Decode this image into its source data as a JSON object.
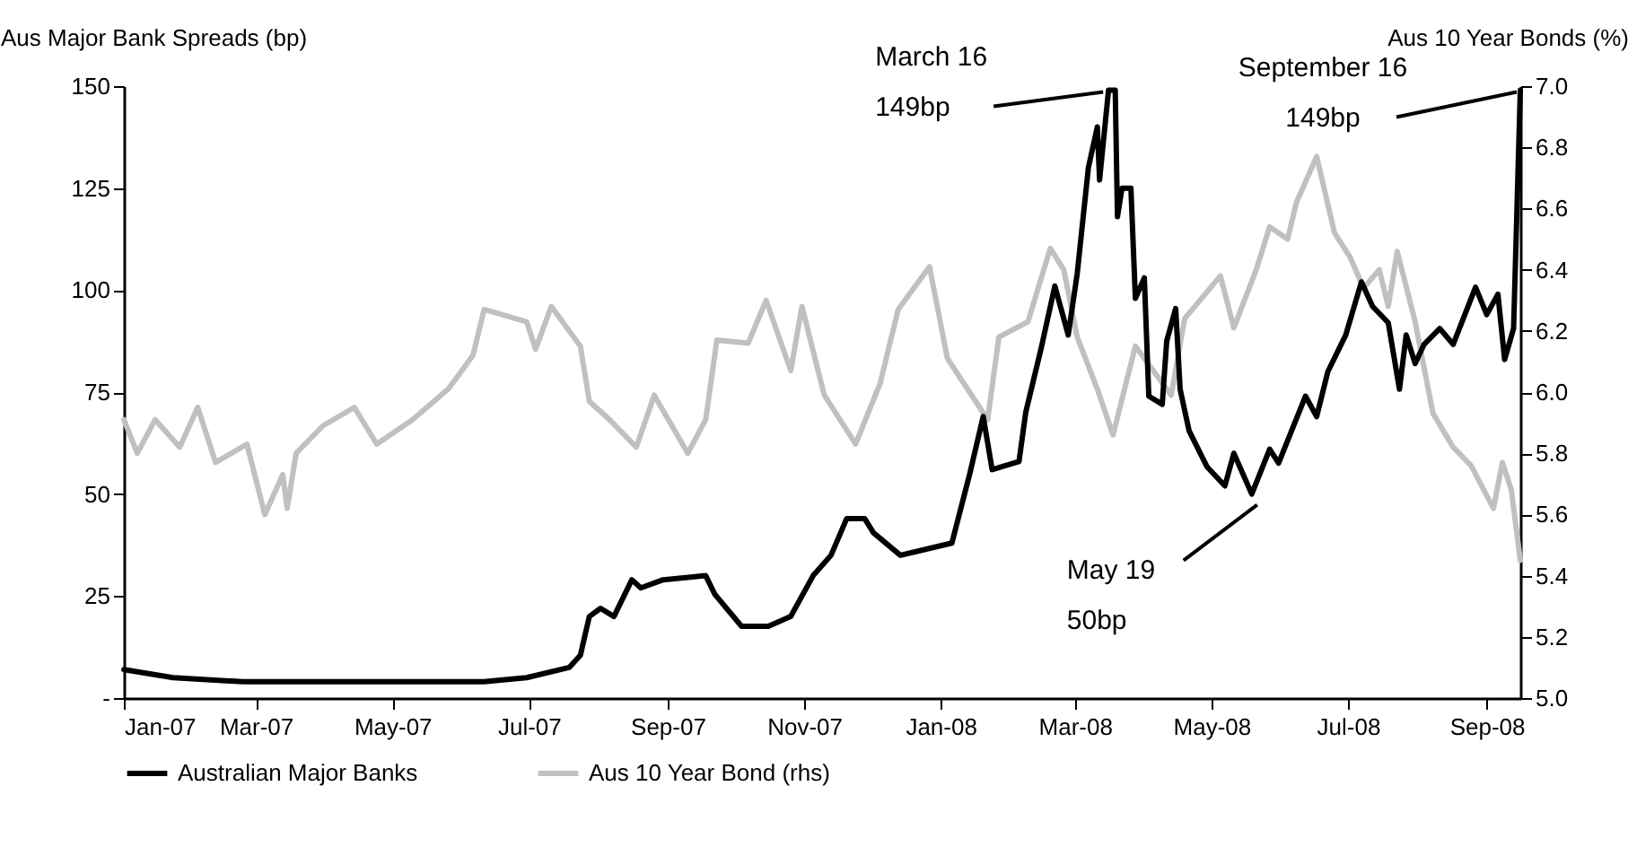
{
  "chart_data": {
    "type": "line",
    "ylabel": "Aus Major Bank Spreads (bp)",
    "y2label": "Aus 10 Year Bonds (%)",
    "xlim": [
      "2007-01-01",
      "2008-09-16"
    ],
    "xticks": [
      {
        "value": "2007-01-01",
        "label": "Jan-07"
      },
      {
        "value": "2007-03-01",
        "label": "Mar-07"
      },
      {
        "value": "2007-05-01",
        "label": "May-07"
      },
      {
        "value": "2007-07-01",
        "label": "Jul-07"
      },
      {
        "value": "2007-09-01",
        "label": "Sep-07"
      },
      {
        "value": "2007-11-01",
        "label": "Nov-07"
      },
      {
        "value": "2008-01-01",
        "label": "Jan-08"
      },
      {
        "value": "2008-03-01",
        "label": "Mar-08"
      },
      {
        "value": "2008-05-01",
        "label": "May-08"
      },
      {
        "value": "2008-07-01",
        "label": "Jul-08"
      },
      {
        "value": "2008-09-01",
        "label": "Sep-08"
      }
    ],
    "ylim": [
      0,
      150
    ],
    "yticks": [
      {
        "value": 0,
        "label": "-"
      },
      25,
      50,
      75,
      100,
      125,
      150
    ],
    "y2lim": [
      5.0,
      7.0
    ],
    "y2ticks": [
      {
        "value": 5.0,
        "label": "5.0"
      },
      {
        "value": 5.2,
        "label": "5.2"
      },
      {
        "value": 5.4,
        "label": "5.4"
      },
      {
        "value": 5.6,
        "label": "5.6"
      },
      {
        "value": 5.8,
        "label": "5.8"
      },
      {
        "value": 6.0,
        "label": "6.0"
      },
      {
        "value": 6.2,
        "label": "6.2"
      },
      {
        "value": 6.4,
        "label": "6.4"
      },
      {
        "value": 6.6,
        "label": "6.6"
      },
      {
        "value": 6.8,
        "label": "6.8"
      },
      {
        "value": 7.0,
        "label": "7.0"
      }
    ],
    "grid": false,
    "legend": "bottom",
    "marker": "none",
    "line_style": "solid",
    "series": [
      {
        "name": "Australian Major Banks",
        "color": "#000000",
        "x": [
          "2007-01-01",
          "2007-01-23",
          "2007-02-23",
          "2007-06-11",
          "2007-06-30",
          "2007-07-19",
          "2007-07-24",
          "2007-07-28",
          "2007-08-02",
          "2007-08-08",
          "2007-08-16",
          "2007-08-20",
          "2007-08-30",
          "2007-09-18",
          "2007-09-22",
          "2007-10-04",
          "2007-10-16",
          "2007-10-26",
          "2007-11-05",
          "2007-11-13",
          "2007-11-20",
          "2007-11-28",
          "2007-12-02",
          "2007-12-14",
          "2008-01-06",
          "2008-01-14",
          "2008-01-20",
          "2008-01-24",
          "2008-02-05",
          "2008-02-08",
          "2008-02-15",
          "2008-02-21",
          "2008-02-27",
          "2008-03-02",
          "2008-03-07",
          "2008-03-11",
          "2008-03-12",
          "2008-03-16",
          "2008-03-19",
          "2008-03-20",
          "2008-03-22",
          "2008-03-26",
          "2008-03-28",
          "2008-04-01",
          "2008-04-03",
          "2008-04-09",
          "2008-04-11",
          "2008-04-15",
          "2008-04-17",
          "2008-04-21",
          "2008-04-29",
          "2008-05-07",
          "2008-05-11",
          "2008-05-19",
          "2008-05-27",
          "2008-05-31",
          "2008-06-12",
          "2008-06-17",
          "2008-06-22",
          "2008-06-30",
          "2008-07-07",
          "2008-07-12",
          "2008-07-19",
          "2008-07-24",
          "2008-07-27",
          "2008-07-31",
          "2008-08-04",
          "2008-08-11",
          "2008-08-17",
          "2008-08-27",
          "2008-09-01",
          "2008-09-06",
          "2008-09-09",
          "2008-09-13",
          "2008-09-16"
        ],
        "values": [
          7,
          5,
          4,
          4,
          5,
          7.5,
          10.5,
          20,
          22,
          20,
          29,
          27,
          29,
          30,
          25.5,
          17.6,
          17.6,
          20,
          30,
          35,
          44,
          44,
          40.5,
          35,
          38,
          55,
          69,
          56,
          58,
          70,
          86,
          101,
          89,
          104,
          130,
          140,
          127,
          149,
          149,
          118,
          125,
          125,
          98,
          103,
          74,
          72,
          87.5,
          95.5,
          75.7,
          65.5,
          56.7,
          52,
          60,
          50,
          61,
          57.6,
          74,
          69,
          80,
          89,
          102,
          96,
          92,
          75.7,
          89,
          82,
          86.7,
          90.6,
          86.7,
          100.7,
          94,
          99,
          83,
          90.6,
          149
        ]
      },
      {
        "name": "Aus 10 Year Bond (rhs)",
        "color": "#c0c0c0",
        "axis": "y2",
        "x": [
          "2007-01-01",
          "2007-01-07",
          "2007-01-15",
          "2007-01-26",
          "2007-02-03",
          "2007-02-11",
          "2007-02-25",
          "2007-03-05",
          "2007-03-13",
          "2007-03-15",
          "2007-03-19",
          "2007-03-31",
          "2007-04-14",
          "2007-04-24",
          "2007-05-10",
          "2007-05-26",
          "2007-06-06",
          "2007-06-11",
          "2007-06-30",
          "2007-07-04",
          "2007-07-11",
          "2007-07-24",
          "2007-07-28",
          "2007-08-06",
          "2007-08-18",
          "2007-08-26",
          "2007-09-10",
          "2007-09-18",
          "2007-09-23",
          "2007-10-07",
          "2007-10-15",
          "2007-10-26",
          "2007-10-31",
          "2007-11-10",
          "2007-11-24",
          "2007-12-05",
          "2007-12-13",
          "2007-12-27",
          "2008-01-04",
          "2008-01-22",
          "2008-01-27",
          "2008-02-09",
          "2008-02-19",
          "2008-02-25",
          "2008-03-02",
          "2008-03-11",
          "2008-03-18",
          "2008-03-28",
          "2008-04-13",
          "2008-04-19",
          "2008-05-05",
          "2008-05-11",
          "2008-05-21",
          "2008-05-27",
          "2008-06-04",
          "2008-06-08",
          "2008-06-17",
          "2008-06-25",
          "2008-07-02",
          "2008-07-08",
          "2008-07-15",
          "2008-07-19",
          "2008-07-23",
          "2008-07-31",
          "2008-08-08",
          "2008-08-17",
          "2008-08-25",
          "2008-09-04",
          "2008-09-08",
          "2008-09-12",
          "2008-09-16"
        ],
        "values": [
          5.91,
          5.8,
          5.91,
          5.82,
          5.95,
          5.77,
          5.83,
          5.6,
          5.73,
          5.62,
          5.8,
          5.89,
          5.95,
          5.83,
          5.91,
          6.01,
          6.12,
          6.27,
          6.23,
          6.14,
          6.28,
          6.15,
          5.97,
          5.91,
          5.82,
          5.99,
          5.8,
          5.91,
          6.17,
          6.16,
          6.3,
          6.07,
          6.28,
          5.99,
          5.83,
          6.03,
          6.27,
          6.41,
          6.11,
          5.91,
          6.18,
          6.23,
          6.47,
          6.4,
          6.18,
          6.01,
          5.86,
          6.15,
          5.99,
          6.24,
          6.38,
          6.21,
          6.4,
          6.54,
          6.5,
          6.62,
          6.77,
          6.52,
          6.44,
          6.34,
          6.4,
          6.28,
          6.46,
          6.23,
          5.93,
          5.82,
          5.76,
          5.62,
          5.77,
          5.68,
          5.45
        ]
      }
    ],
    "annotations": [
      {
        "text": "March 16\n149bp",
        "x": "2008-03-16",
        "y": 149
      },
      {
        "text": "September 16\n149bp",
        "x": "2008-09-16",
        "y": 149
      },
      {
        "text": "May 19\n50bp",
        "x": "2008-05-19",
        "y": 50
      }
    ]
  }
}
